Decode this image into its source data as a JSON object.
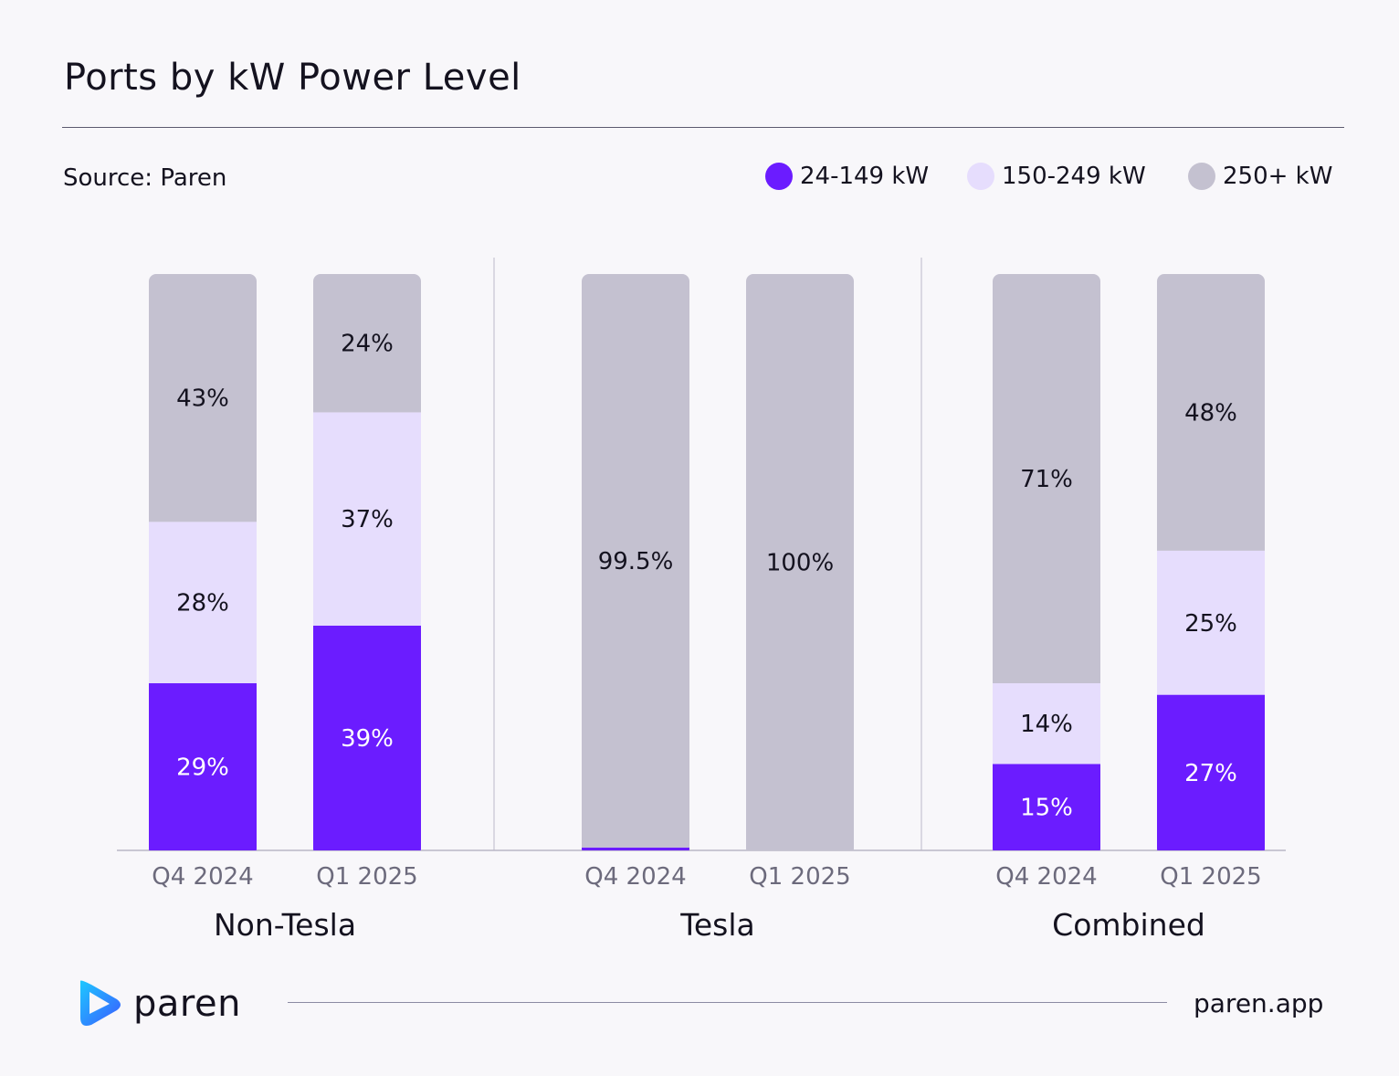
{
  "header": {
    "title": "Ports by kW Power Level",
    "source": "Source: Paren"
  },
  "legend": [
    {
      "label": "24-149 kW",
      "color": "#6b1cff"
    },
    {
      "label": "150-249 kW",
      "color": "#e6ddfd"
    },
    {
      "label": "250+ kW",
      "color": "#c4c1d0"
    }
  ],
  "footer": {
    "brand": "paren",
    "site": "paren.app",
    "logo_icon": "paren-logo-icon"
  },
  "chart_data": {
    "type": "bar",
    "stacked": true,
    "ylim": [
      0,
      100
    ],
    "series_names": [
      "24-149 kW",
      "150-249 kW",
      "250+ kW"
    ],
    "series_colors": [
      "#6b1cff",
      "#e6ddfd",
      "#c4c1d0"
    ],
    "label_colors": [
      "#ffffff",
      "#14121f",
      "#14121f"
    ],
    "groups": [
      {
        "name": "Non-Tesla",
        "bars": [
          {
            "category": "Q4 2024",
            "values": [
              29,
              28,
              43
            ],
            "labels": [
              "29%",
              "28%",
              "43%"
            ]
          },
          {
            "category": "Q1 2025",
            "values": [
              39,
              37,
              24
            ],
            "labels": [
              "39%",
              "37%",
              "24%"
            ]
          }
        ]
      },
      {
        "name": "Tesla",
        "bars": [
          {
            "category": "Q4 2024",
            "values": [
              0.5,
              0,
              99.5
            ],
            "labels": [
              "",
              "",
              "99.5%"
            ]
          },
          {
            "category": "Q1 2025",
            "values": [
              0,
              0,
              100
            ],
            "labels": [
              "",
              "",
              "100%"
            ]
          }
        ]
      },
      {
        "name": "Combined",
        "bars": [
          {
            "category": "Q4 2024",
            "values": [
              15,
              14,
              71
            ],
            "labels": [
              "15%",
              "14%",
              "71%"
            ]
          },
          {
            "category": "Q1 2025",
            "values": [
              27,
              25,
              48
            ],
            "labels": [
              "27%",
              "25%",
              "48%"
            ]
          }
        ]
      }
    ]
  }
}
